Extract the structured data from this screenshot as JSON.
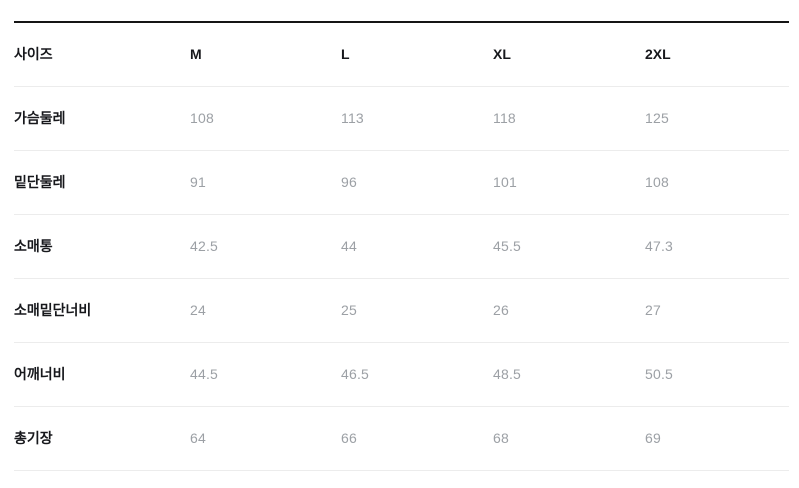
{
  "chart_data": {
    "type": "table",
    "columns": [
      "사이즈",
      "M",
      "L",
      "XL",
      "2XL"
    ],
    "rows": [
      {
        "label": "가슴둘레",
        "values": [
          "108",
          "113",
          "118",
          "125"
        ]
      },
      {
        "label": "밑단둘레",
        "values": [
          "91",
          "96",
          "101",
          "108"
        ]
      },
      {
        "label": "소매통",
        "values": [
          "42.5",
          "44",
          "45.5",
          "47.3"
        ]
      },
      {
        "label": "소매밑단너비",
        "values": [
          "24",
          "25",
          "26",
          "27"
        ]
      },
      {
        "label": "어깨너비",
        "values": [
          "44.5",
          "46.5",
          "48.5",
          "50.5"
        ]
      },
      {
        "label": "총기장",
        "values": [
          "64",
          "66",
          "68",
          "69"
        ]
      }
    ]
  },
  "style": {
    "header_text_color": "#17181c",
    "label_text_color": "#17181c",
    "value_text_color": "#9ca0a5",
    "top_border_color": "#151515",
    "row_divider_color": "#ececec",
    "background_color": "#ffffff"
  }
}
